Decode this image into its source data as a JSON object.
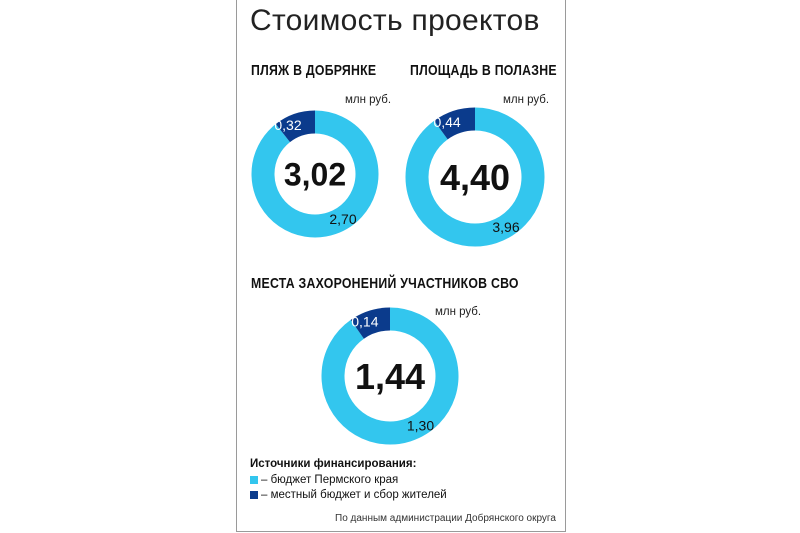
{
  "title": "Стоимость проектов",
  "colors": {
    "regional": "#33c6ee",
    "local": "#0b3b8c"
  },
  "chart_data": [
    {
      "type": "pie",
      "title": "ПЛЯЖ В ДОБРЯНКЕ",
      "unit": "млн руб.",
      "total_label": "3,02",
      "slices": [
        {
          "name": "бюджет Пермского края",
          "value": 2.7,
          "label": "2,70"
        },
        {
          "name": "местный бюджет и сбор жителей",
          "value": 0.32,
          "label": "0,32"
        }
      ]
    },
    {
      "type": "pie",
      "title": "ПЛОЩАДЬ В ПОЛАЗНЕ",
      "unit": "млн руб.",
      "total_label": "4,40",
      "slices": [
        {
          "name": "бюджет Пермского края",
          "value": 3.96,
          "label": "3,96"
        },
        {
          "name": "местный бюджет и сбор жителей",
          "value": 0.44,
          "label": "0,44"
        }
      ]
    },
    {
      "type": "pie",
      "title": "МЕСТА ЗАХОРОНЕНИЙ УЧАСТНИКОВ СВО",
      "unit": "млн руб.",
      "total_label": "1,44",
      "slices": [
        {
          "name": "бюджет Пермского края",
          "value": 1.3,
          "label": "1,30"
        },
        {
          "name": "местный бюджет и сбор жителей",
          "value": 0.14,
          "label": "0,14"
        }
      ]
    }
  ],
  "legend": {
    "title": "Источники финансирования:",
    "items": [
      {
        "label": "– бюджет Пермского края",
        "color": "#33c6ee"
      },
      {
        "label": "– местный бюджет и сбор жителей",
        "color": "#0b3b8c"
      }
    ]
  },
  "source": "По данным администрации Добрянского округа"
}
